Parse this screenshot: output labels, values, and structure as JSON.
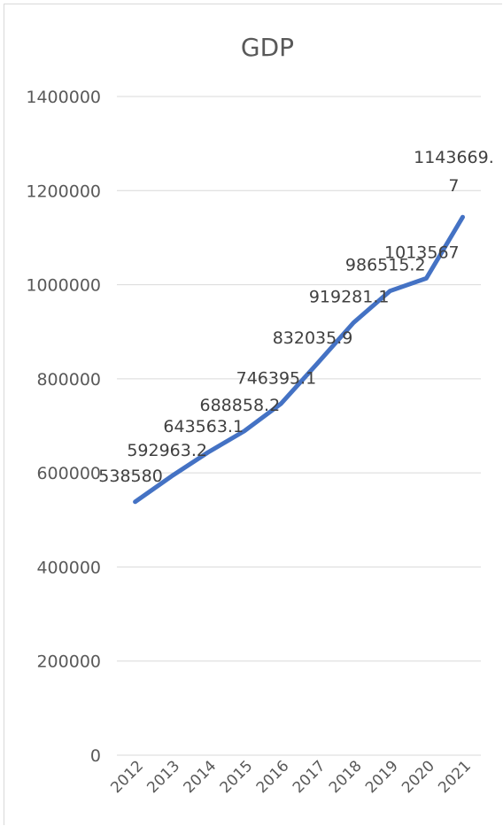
{
  "chart_data": {
    "type": "line",
    "title": "GDP",
    "categories": [
      "2012",
      "2013",
      "2014",
      "2015",
      "2016",
      "2017",
      "2018",
      "2019",
      "2020",
      "2021"
    ],
    "series": [
      {
        "values": [
          538580,
          592963.2,
          643563.1,
          688858.2,
          746395.1,
          832035.9,
          919281.1,
          986515.2,
          1013567,
          1143669.7
        ],
        "labels": [
          "538580",
          "592963.2",
          "643563.1",
          "688858.2",
          "746395.1",
          "832035.9",
          "919281.1",
          "986515.2",
          "1013567",
          "1143669.7"
        ],
        "color": "#4472c4"
      }
    ],
    "yticks": [
      "0",
      "200000",
      "400000",
      "600000",
      "800000",
      "1000000",
      "1200000",
      "1400000"
    ],
    "ylim": [
      0,
      1400000
    ],
    "grid": true,
    "legend": "none"
  }
}
